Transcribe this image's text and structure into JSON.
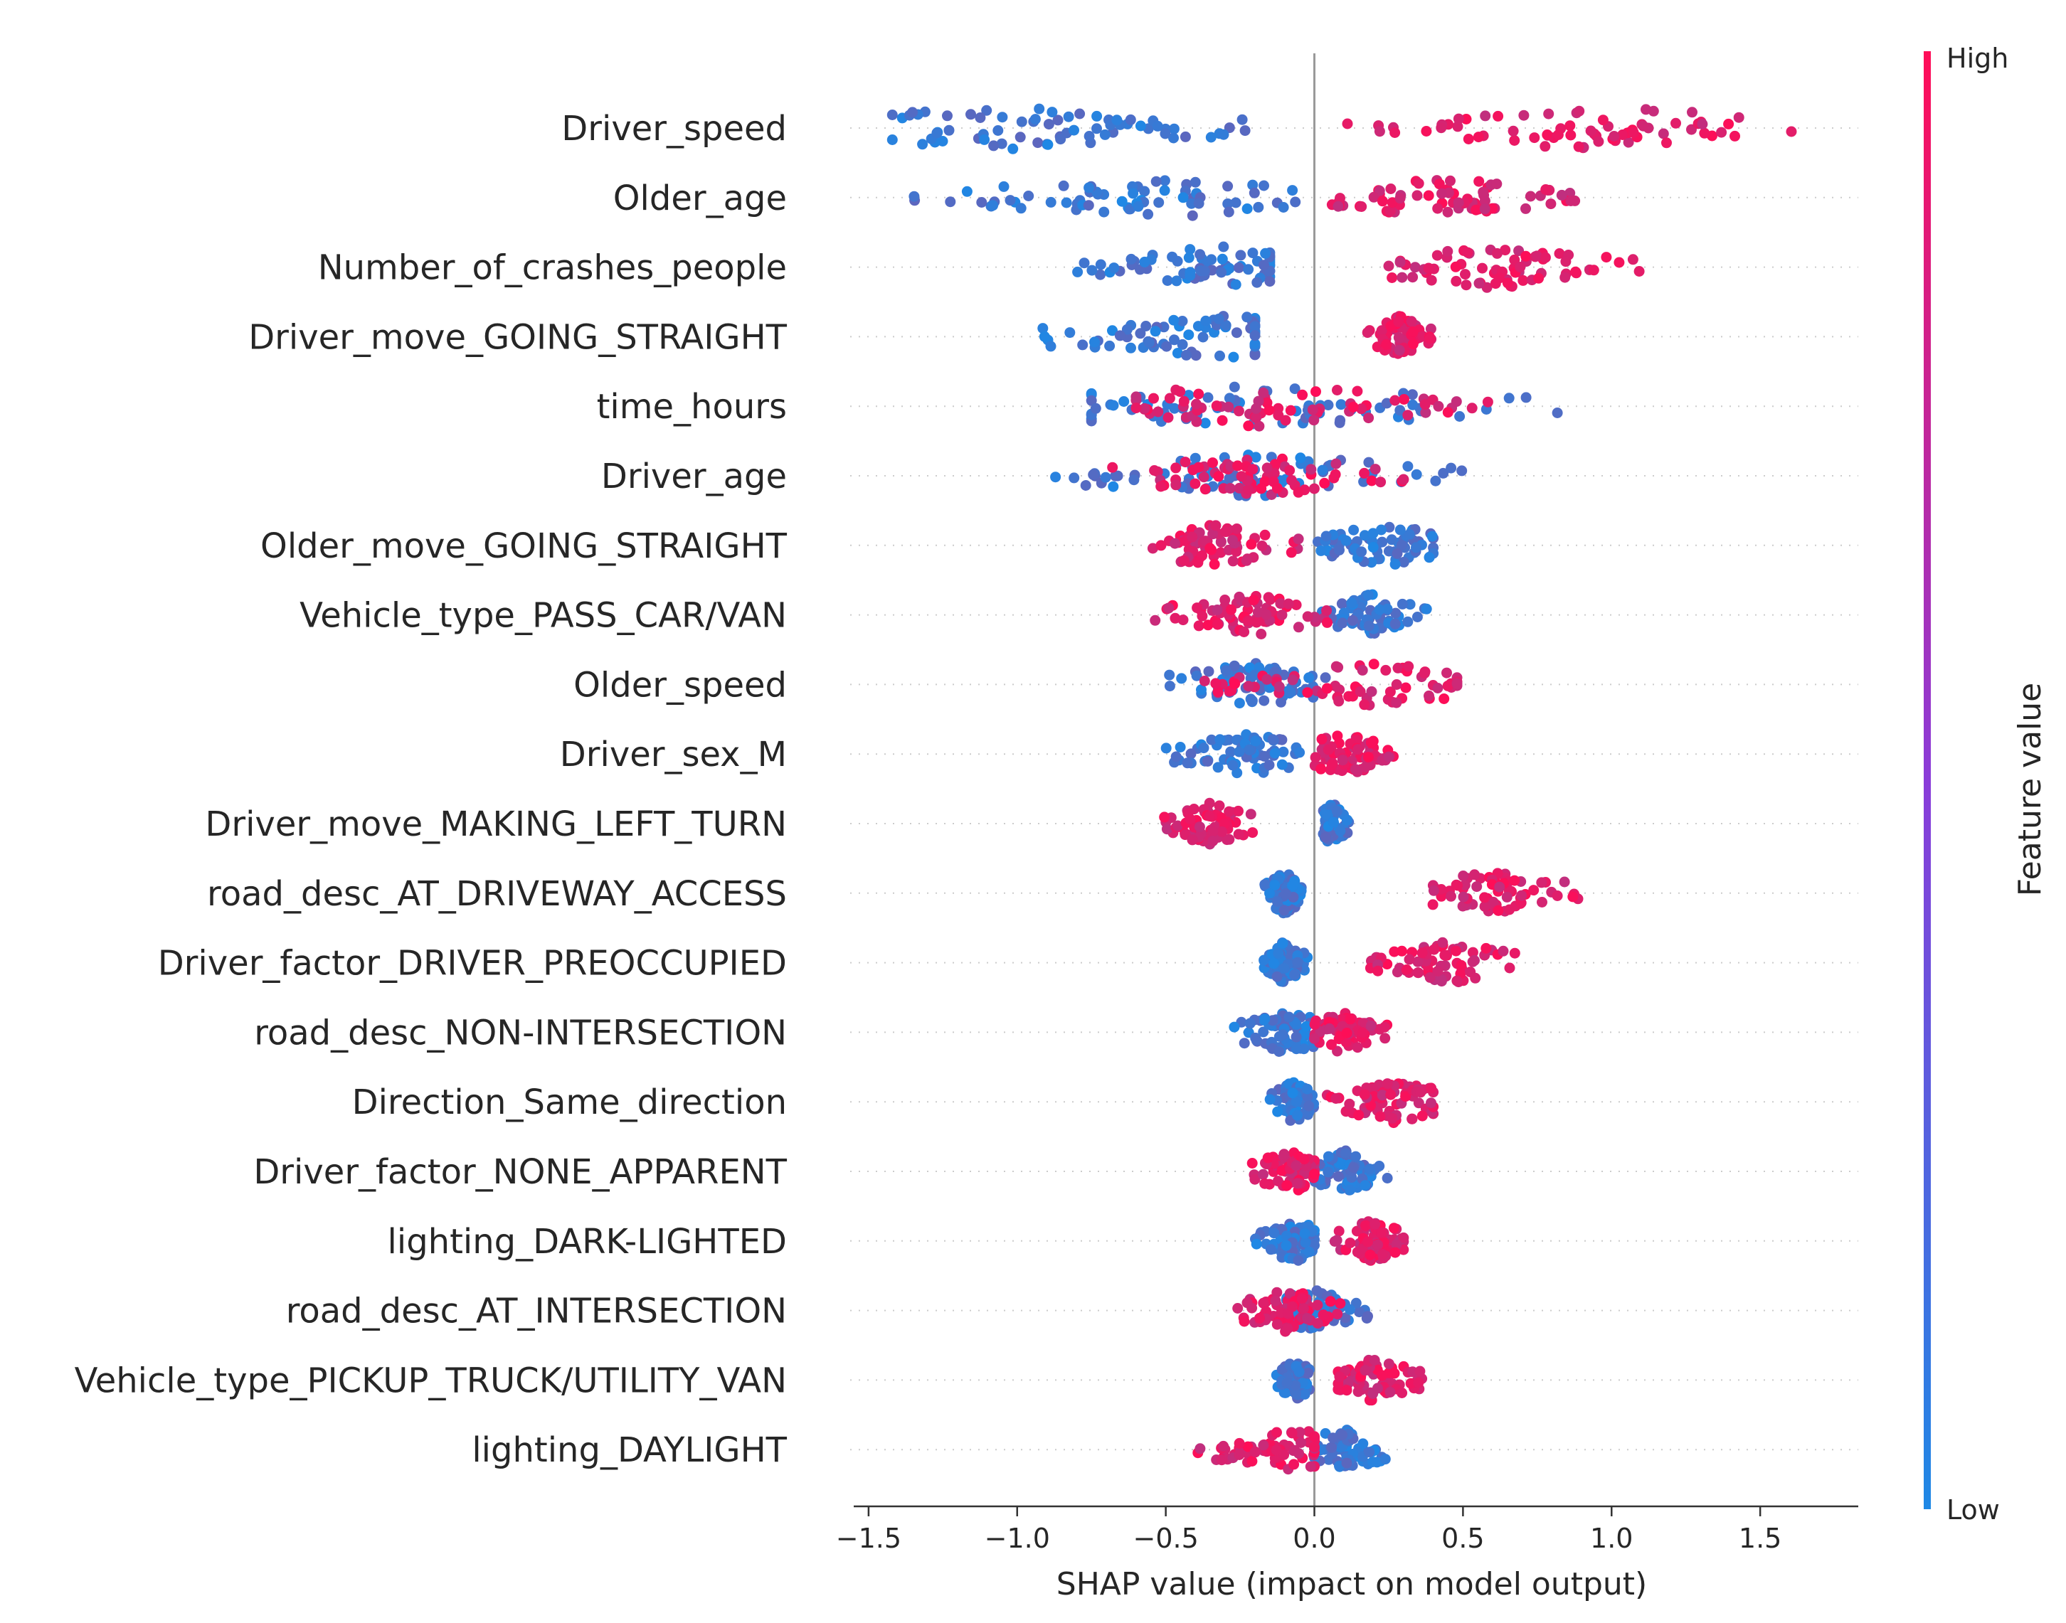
{
  "chart_data": {
    "type": "scatter",
    "subtype": "shap-beeswarm",
    "title": "",
    "xlabel": "SHAP value (impact on model output)",
    "xlim": [
      -1.55,
      1.83
    ],
    "x_ticks": [
      -1.5,
      -1.0,
      -0.5,
      0.0,
      0.5,
      1.0,
      1.5
    ],
    "x_tick_labels": [
      "−1.5",
      "−1.0",
      "−0.5",
      "0.0",
      "0.5",
      "1.0",
      "1.5"
    ],
    "colorbar": {
      "title": "Feature value",
      "high_label": "High",
      "low_label": "Low",
      "low_color": "#1e88e5",
      "high_color": "#ff0d57"
    },
    "features": [
      {
        "name": "Driver_speed",
        "low_range": [
          -1.42,
          -0.12
        ],
        "high_range": [
          0.1,
          1.68
        ],
        "low_center": -1.0,
        "high_center": 0.95
      },
      {
        "name": "Older_age",
        "low_range": [
          -1.4,
          -0.05
        ],
        "high_range": [
          0.05,
          0.88
        ],
        "low_center": -0.6,
        "high_center": 0.4
      },
      {
        "name": "Number_of_crashes_people",
        "low_range": [
          -0.8,
          -0.15
        ],
        "high_range": [
          0.25,
          1.1
        ],
        "low_center": -0.3,
        "high_center": 0.6
      },
      {
        "name": "Driver_move_GOING_STRAIGHT",
        "low_range": [
          -1.0,
          -0.2
        ],
        "high_range": [
          0.17,
          0.4
        ],
        "low_center": -0.3,
        "high_center": 0.28
      },
      {
        "name": "time_hours",
        "low_range": [
          -0.75,
          0.82
        ],
        "high_range": [
          -0.6,
          0.6
        ],
        "low_center": -0.3,
        "high_center": -0.2
      },
      {
        "name": "Driver_age",
        "low_range": [
          -0.97,
          0.55
        ],
        "high_range": [
          -0.8,
          0.3
        ],
        "low_center": -0.2,
        "high_center": -0.15
      },
      {
        "name": "Older_move_GOING_STRAIGHT",
        "low_range": [
          -0.05,
          0.4
        ],
        "high_range": [
          -0.6,
          -0.05
        ],
        "low_center": 0.25,
        "high_center": -0.35
      },
      {
        "name": "Vehicle_type_PASS_CAR/VAN",
        "low_range": [
          0.0,
          0.4
        ],
        "high_range": [
          -0.55,
          0.05
        ],
        "low_center": 0.2,
        "high_center": -0.2
      },
      {
        "name": "Older_speed",
        "low_range": [
          -0.55,
          0.1
        ],
        "high_range": [
          -0.4,
          0.48
        ],
        "low_center": -0.2,
        "high_center": 0.2
      },
      {
        "name": "Driver_sex_M",
        "low_range": [
          -0.5,
          -0.05
        ],
        "high_range": [
          0.0,
          0.28
        ],
        "low_center": -0.22,
        "high_center": 0.1
      },
      {
        "name": "Driver_move_MAKING_LEFT_TURN",
        "low_range": [
          0.03,
          0.12
        ],
        "high_range": [
          -0.52,
          -0.2
        ],
        "low_center": 0.06,
        "high_center": -0.35
      },
      {
        "name": "road_desc_AT_DRIVEWAY_ACCESS",
        "low_range": [
          -0.17,
          -0.02
        ],
        "high_range": [
          0.38,
          0.95
        ],
        "low_center": -0.1,
        "high_center": 0.6
      },
      {
        "name": "Driver_factor_DRIVER_PREOCCUPIED",
        "low_range": [
          -0.17,
          -0.02
        ],
        "high_range": [
          0.18,
          0.68
        ],
        "low_center": -0.1,
        "high_center": 0.45
      },
      {
        "name": "road_desc_NON-INTERSECTION",
        "low_range": [
          -0.3,
          0.0
        ],
        "high_range": [
          0.0,
          0.25
        ],
        "low_center": -0.1,
        "high_center": 0.1
      },
      {
        "name": "Direction_Same_direction",
        "low_range": [
          -0.15,
          0.0
        ],
        "high_range": [
          0.03,
          0.4
        ],
        "low_center": -0.07,
        "high_center": 0.27
      },
      {
        "name": "Driver_factor_NONE_APPARENT",
        "low_range": [
          0.0,
          0.25
        ],
        "high_range": [
          -0.22,
          0.0
        ],
        "low_center": 0.1,
        "high_center": -0.08
      },
      {
        "name": "lighting_DARK-LIGHTED",
        "low_range": [
          -0.2,
          0.0
        ],
        "high_range": [
          0.05,
          0.3
        ],
        "low_center": -0.07,
        "high_center": 0.2
      },
      {
        "name": "road_desc_AT_INTERSECTION",
        "low_range": [
          -0.1,
          0.18
        ],
        "high_range": [
          -0.28,
          0.1
        ],
        "low_center": 0.0,
        "high_center": -0.1
      },
      {
        "name": "Vehicle_type_PICKUP_TRUCK/UTILITY_VAN",
        "low_range": [
          -0.13,
          0.0
        ],
        "high_range": [
          0.08,
          0.38
        ],
        "low_center": -0.06,
        "high_center": 0.2
      },
      {
        "name": "lighting_DAYLIGHT",
        "low_range": [
          0.0,
          0.28
        ],
        "high_range": [
          -0.4,
          0.0
        ],
        "low_center": 0.1,
        "high_center": -0.05
      }
    ]
  }
}
